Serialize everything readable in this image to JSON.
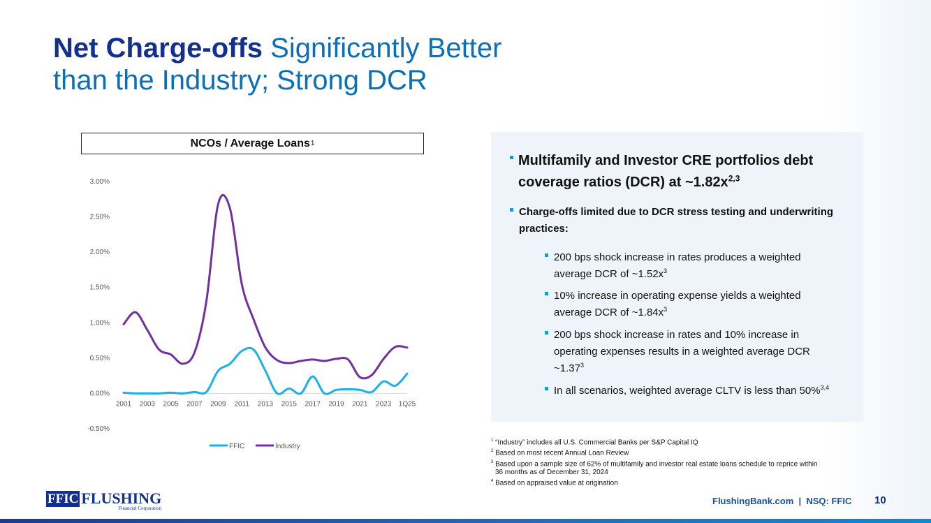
{
  "title": {
    "bold": "Net Charge-offs",
    "rest1": " Significantly Better",
    "rest2": "than the Industry; Strong DCR"
  },
  "chart_box": {
    "title": "NCOs / Average Loans",
    "sup": "1"
  },
  "chart_data": {
    "type": "line",
    "title": "NCOs / Average Loans",
    "x": [
      "2001",
      "2002",
      "2003",
      "2004",
      "2005",
      "2006",
      "2007",
      "2008",
      "2009",
      "2010",
      "2011",
      "2012",
      "2013",
      "2014",
      "2015",
      "2016",
      "2017",
      "2018",
      "2019",
      "2020",
      "2021",
      "2022",
      "2023",
      "2024",
      "1Q25"
    ],
    "x_tick_labels": [
      "2001",
      "2003",
      "2005",
      "2007",
      "2009",
      "2011",
      "2013",
      "2015",
      "2017",
      "2019",
      "2021",
      "2023",
      "1Q25"
    ],
    "y_tick_labels": [
      "3.00%",
      "2.50%",
      "2.00%",
      "1.50%",
      "1.00%",
      "0.50%",
      "0.00%",
      "-0.50%"
    ],
    "ylim": [
      -0.5,
      3.0
    ],
    "series": [
      {
        "name": "FFIC",
        "color": "#1ab0e8",
        "values": [
          0.01,
          0.0,
          0.0,
          0.0,
          0.01,
          0.0,
          0.02,
          0.02,
          0.32,
          0.42,
          0.6,
          0.62,
          0.32,
          0.0,
          0.07,
          0.0,
          0.24,
          0.0,
          0.05,
          0.06,
          0.05,
          0.02,
          0.17,
          0.11,
          0.28
        ]
      },
      {
        "name": "Industry",
        "color": "#7030a0",
        "values": [
          0.98,
          1.15,
          0.9,
          0.62,
          0.55,
          0.42,
          0.58,
          1.3,
          2.68,
          2.62,
          1.55,
          1.05,
          0.65,
          0.47,
          0.43,
          0.46,
          0.48,
          0.46,
          0.49,
          0.48,
          0.23,
          0.26,
          0.49,
          0.66,
          0.65
        ]
      }
    ],
    "grid": false,
    "legend": "bottom"
  },
  "panel": {
    "bullet1": {
      "text": "Multifamily and Investor CRE portfolios debt coverage ratios (DCR) at ~1.82x",
      "sup": "2,3"
    },
    "bullet2": {
      "text": "Charge-offs limited due to DCR stress testing and underwriting practices:"
    },
    "subs": [
      {
        "text": "200 bps shock increase in rates produces a weighted average DCR of ~1.52x",
        "sup": "3"
      },
      {
        "text": "10% increase in operating expense yields a weighted average DCR of ~1.84x",
        "sup": "3"
      },
      {
        "text": "200 bps shock increase in rates and 10% increase in operating expenses results in a weighted average DCR ~1.37",
        "sup": "3"
      },
      {
        "text": "In all scenarios, weighted average CLTV is less than 50%",
        "sup": "3,4"
      }
    ]
  },
  "footnotes": [
    {
      "num": "1",
      "text": " “Industry” includes all U.S. Commercial Banks per S&P Capital IQ"
    },
    {
      "num": "2",
      "text": " Based on most recent Annual Loan Review"
    },
    {
      "num": "3",
      "text": " Based upon a sample size of 62% of multifamily and investor real estate loans schedule to reprice within"
    },
    {
      "num": "",
      "text": "36 months as of December 31, 2024"
    },
    {
      "num": "4",
      "text": " Based on appraised value at origination"
    }
  ],
  "logo": {
    "box": "FFIC",
    "name": "FLUSHING",
    "sub": "Financial Corporation"
  },
  "footer": {
    "text": "FlushingBank.com  |  NSQ: FFIC",
    "page": "10"
  }
}
